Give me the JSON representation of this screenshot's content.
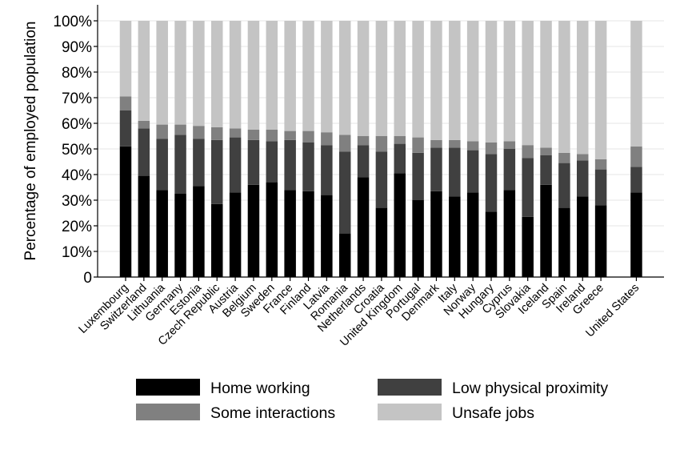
{
  "chart_data": {
    "type": "bar",
    "stacked": true,
    "ylabel": "Percentage of employed population",
    "ylim": [
      0,
      100
    ],
    "yticks": [
      "0",
      "10%",
      "20%",
      "30%",
      "40%",
      "50%",
      "60%",
      "70%",
      "80%",
      "90%",
      "100%"
    ],
    "grid": true,
    "legend_position": "bottom",
    "categories": [
      "Luxembourg",
      "Switzerland",
      "Lithuania",
      "Germany",
      "Estonia",
      "Czech Republic",
      "Austria",
      "Belgium",
      "Sweden",
      "France",
      "Finland",
      "Latvia",
      "Romania",
      "Netherlands",
      "Croatia",
      "United Kingdom",
      "Portugal",
      "Denmark",
      "Italy",
      "Norway",
      "Hungary",
      "Cyprus",
      "Slovakia",
      "Iceland",
      "Spain",
      "Ireland",
      "Greece",
      "United States"
    ],
    "series": [
      {
        "name": "Home working",
        "color": "#000000",
        "values": [
          51,
          39.5,
          34,
          32.5,
          35.5,
          28.5,
          33,
          36,
          37,
          34,
          33.5,
          32,
          17,
          39,
          27,
          40.5,
          30,
          33.5,
          31.5,
          33,
          25.5,
          34,
          23.5,
          36,
          27,
          31.5,
          28,
          33
        ]
      },
      {
        "name": "Low physical proximity",
        "color": "#404040",
        "values": [
          14,
          18.5,
          20,
          23,
          18.5,
          25,
          21.5,
          17.5,
          16,
          19.5,
          19,
          19.5,
          32,
          12.5,
          22,
          11.5,
          18.5,
          17,
          19,
          16.5,
          22.5,
          16,
          23,
          11.5,
          17.5,
          14,
          14,
          10
        ]
      },
      {
        "name": "Some interactions",
        "color": "#808080",
        "values": [
          5.5,
          3,
          5.5,
          4,
          5,
          5,
          3.5,
          4,
          4.5,
          3.5,
          4.5,
          5,
          6.5,
          3.5,
          6,
          3,
          6,
          3,
          3,
          3.5,
          4.5,
          3,
          5,
          3,
          4,
          2.5,
          4,
          8
        ]
      },
      {
        "name": "Unsafe jobs",
        "color": "#c4c4c4",
        "values": [
          29.5,
          39,
          40.5,
          40.5,
          41,
          41.5,
          42,
          42.5,
          42.5,
          43,
          43,
          43.5,
          44.5,
          45,
          45,
          45,
          45.5,
          46.5,
          46.5,
          47,
          47.5,
          47,
          48.5,
          49.5,
          51.5,
          52,
          54,
          49
        ]
      }
    ]
  },
  "legend": {
    "items": [
      {
        "label": "Home working",
        "color": "#000000"
      },
      {
        "label": "Low physical proximity",
        "color": "#404040"
      },
      {
        "label": "Some interactions",
        "color": "#808080"
      },
      {
        "label": "Unsafe jobs",
        "color": "#c4c4c4"
      }
    ]
  }
}
